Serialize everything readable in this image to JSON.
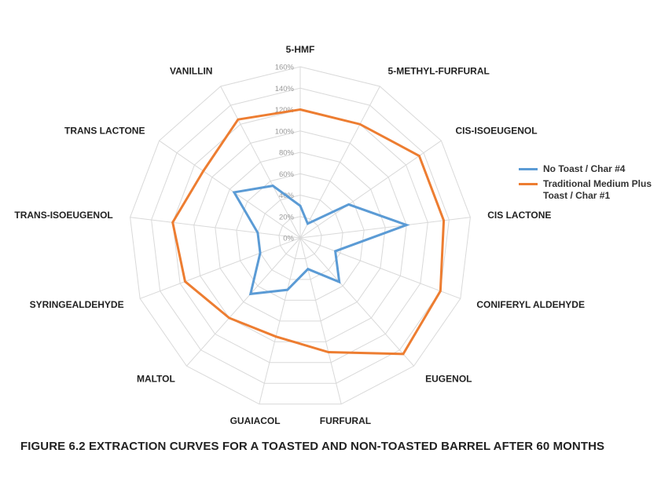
{
  "chart_data": {
    "type": "radar",
    "title": "FIGURE 6.2  EXTRACTION CURVES FOR A TOASTED AND NON-TOASTED BARREL AFTER 60 MONTHS",
    "categories": [
      "5-HMF",
      "5-METHYL-FURFURAL",
      "CIS-ISOEUGENOL",
      "CIS LACTONE",
      "CONIFERYL ALDEHYDE",
      "EUGENOL",
      "FURFURAL",
      "GUAIACOL",
      "MALTOL",
      "SYRINGEALDEHYDE",
      "TRANS-ISOEUGENOL",
      "TRANS LACTONE",
      "VANILLIN"
    ],
    "ticks": [
      "0%",
      "20%",
      "40%",
      "60%",
      "80%",
      "100%",
      "120%",
      "140%",
      "160%"
    ],
    "rlim": [
      0,
      160
    ],
    "grid": true,
    "legend_position": "right",
    "series": [
      {
        "name": "No Toast / Char #4",
        "color": "#5b9bd5",
        "values": [
          30,
          15,
          55,
          100,
          35,
          55,
          30,
          50,
          70,
          40,
          40,
          75,
          55
        ]
      },
      {
        "name": "Traditional Medium Plus Toast / Char #1",
        "color": "#ed7d31",
        "values": [
          120,
          120,
          135,
          135,
          140,
          145,
          110,
          95,
          100,
          115,
          120,
          110,
          125
        ]
      }
    ]
  }
}
